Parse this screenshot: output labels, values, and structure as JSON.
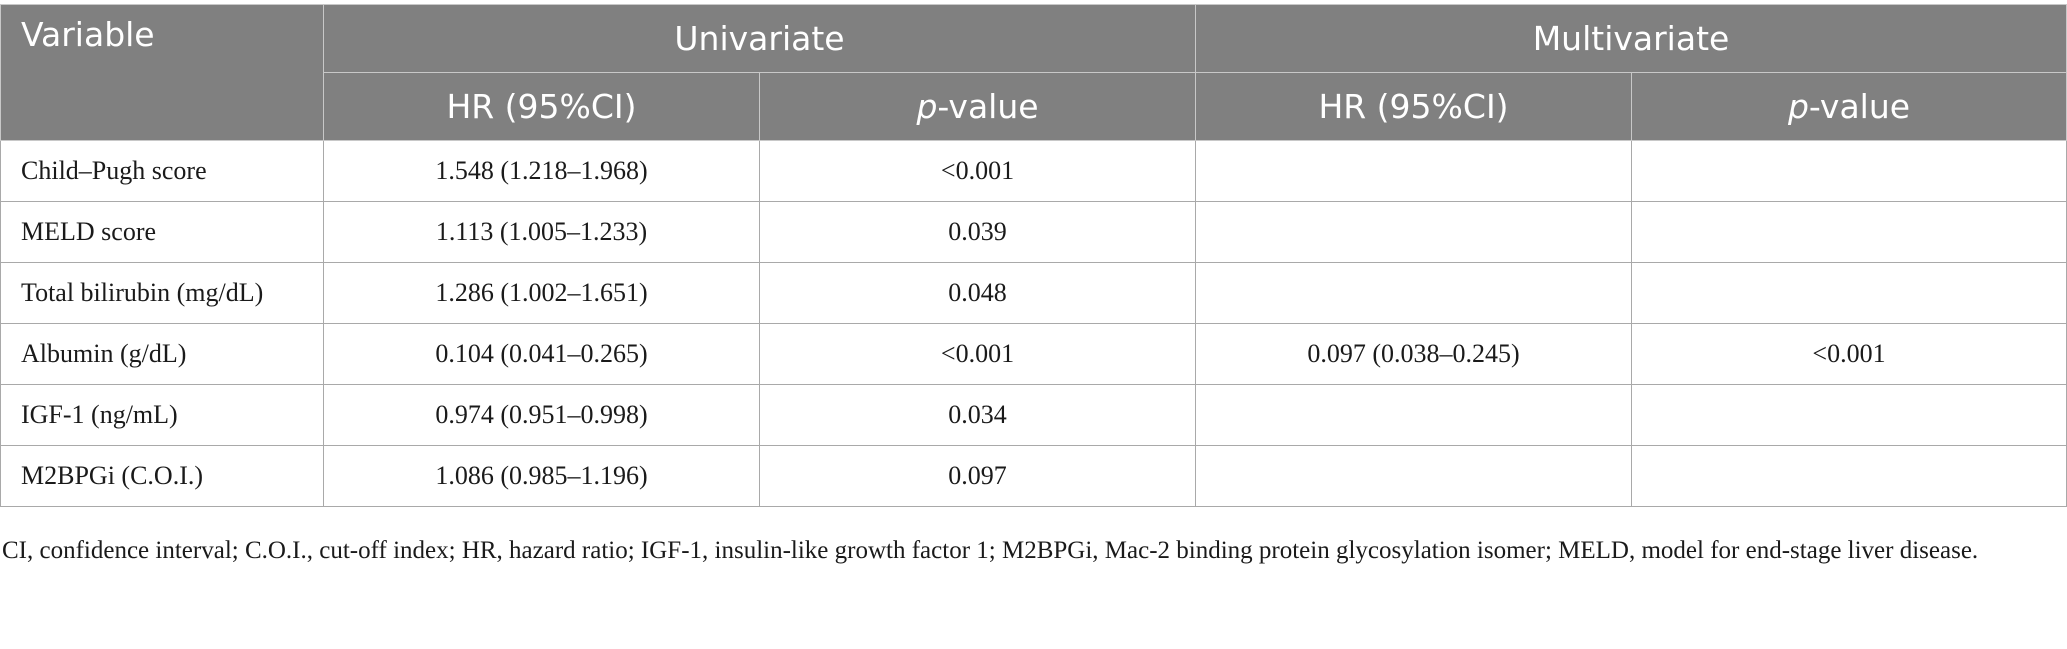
{
  "header": {
    "variable": "Variable",
    "univariate": "Univariate",
    "multivariate": "Multivariate",
    "hr": "HR (95%CI)",
    "p_italic": "p",
    "p_suffix": "-value"
  },
  "rows": [
    {
      "variable": "Child–Pugh score",
      "uni_hr": "1.548 (1.218–1.968)",
      "uni_p": "<0.001",
      "multi_hr": "",
      "multi_p": ""
    },
    {
      "variable": "MELD score",
      "uni_hr": "1.113 (1.005–1.233)",
      "uni_p": "0.039",
      "multi_hr": "",
      "multi_p": ""
    },
    {
      "variable": "Total bilirubin (mg/dL)",
      "uni_hr": "1.286 (1.002–1.651)",
      "uni_p": "0.048",
      "multi_hr": "",
      "multi_p": ""
    },
    {
      "variable": "Albumin (g/dL)",
      "uni_hr": "0.104 (0.041–0.265)",
      "uni_p": "<0.001",
      "multi_hr": "0.097 (0.038–0.245)",
      "multi_p": "<0.001"
    },
    {
      "variable": "IGF-1 (ng/mL)",
      "uni_hr": "0.974 (0.951–0.998)",
      "uni_p": "0.034",
      "multi_hr": "",
      "multi_p": ""
    },
    {
      "variable": "M2BPGi (C.O.I.)",
      "uni_hr": "1.086 (0.985–1.196)",
      "uni_p": "0.097",
      "multi_hr": "",
      "multi_p": ""
    }
  ],
  "footnote": "CI, confidence interval; C.O.I., cut-off index; HR, hazard ratio; IGF-1, insulin-like growth factor 1; M2BPGi, Mac-2 binding protein glycosylation isomer; MELD, model for end-stage liver disease."
}
